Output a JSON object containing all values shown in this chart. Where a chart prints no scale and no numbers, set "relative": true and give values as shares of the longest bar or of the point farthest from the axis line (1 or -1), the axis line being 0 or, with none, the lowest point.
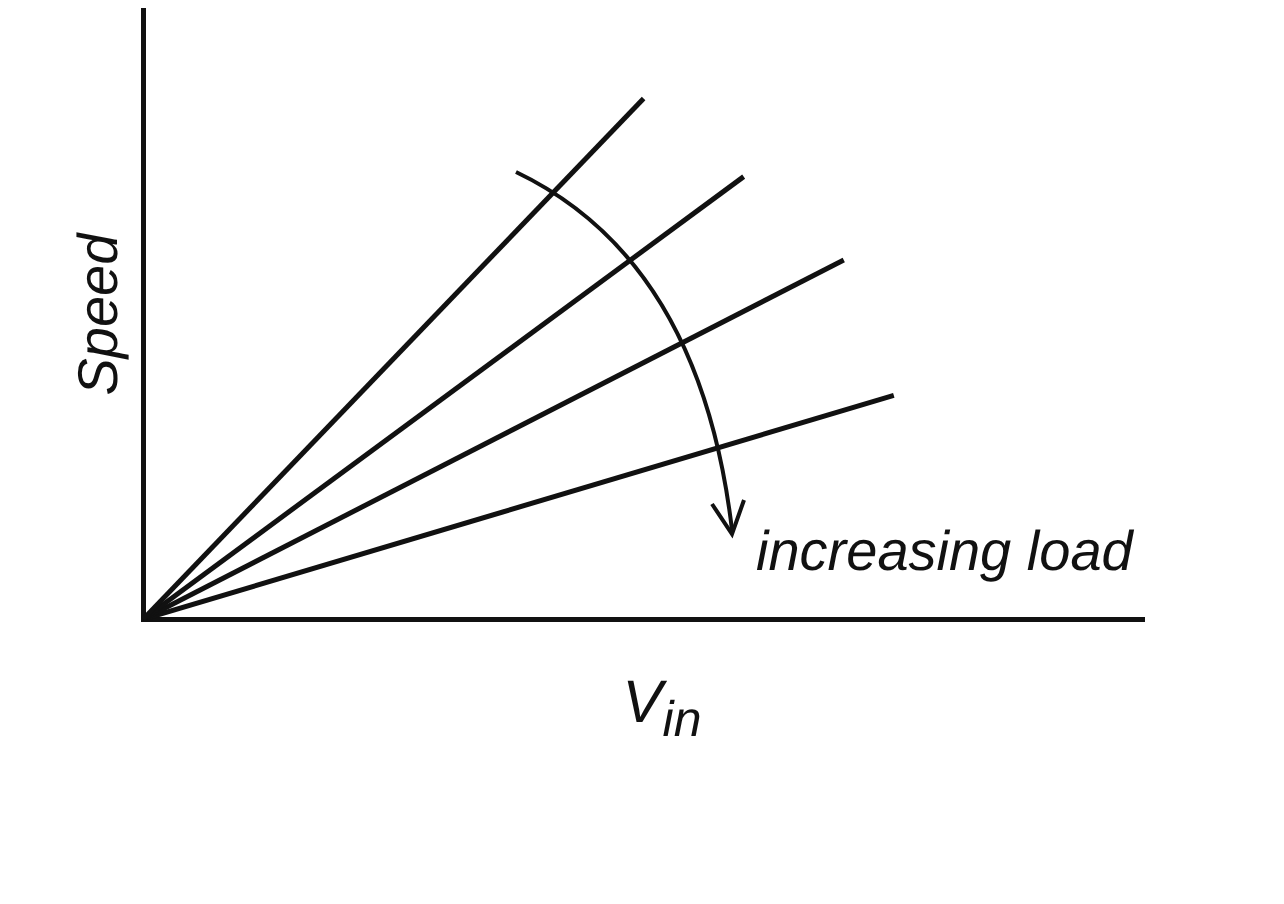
{
  "chart_data": {
    "type": "line",
    "relative": true,
    "xlabel": "V$_{in}$",
    "ylabel": "Speed",
    "legend": false,
    "marker": "none",
    "line_style": "solid",
    "categories": [
      null,
      null,
      null,
      null,
      null,
      null,
      null,
      null,
      null,
      null,
      null,
      null,
      null,
      null,
      null,
      null,
      null,
      null,
      null,
      null,
      null
    ],
    "series": [
      {
        "color": "#111111",
        "values": [
          0,
          null,
          null,
          null,
          null,
          null,
          null,
          null,
          null,
          null,
          1,
          null,
          null,
          null,
          null,
          null,
          null,
          null,
          null,
          null,
          null
        ]
      },
      {
        "color": "#111111",
        "values": [
          0,
          null,
          null,
          null,
          null,
          null,
          null,
          null,
          null,
          null,
          null,
          null,
          0.85,
          null,
          null,
          null,
          null,
          null,
          null,
          null,
          null
        ]
      },
      {
        "color": "#111111",
        "values": [
          0,
          null,
          null,
          null,
          null,
          null,
          null,
          null,
          null,
          null,
          null,
          null,
          null,
          null,
          0.69,
          null,
          null,
          null,
          null,
          null,
          null
        ]
      },
      {
        "color": "#111111",
        "values": [
          0,
          null,
          null,
          null,
          null,
          null,
          null,
          null,
          null,
          null,
          null,
          null,
          null,
          null,
          null,
          0.43,
          null,
          null,
          null,
          null,
          null
        ]
      }
    ],
    "annotations": [
      "increasing load"
    ]
  }
}
